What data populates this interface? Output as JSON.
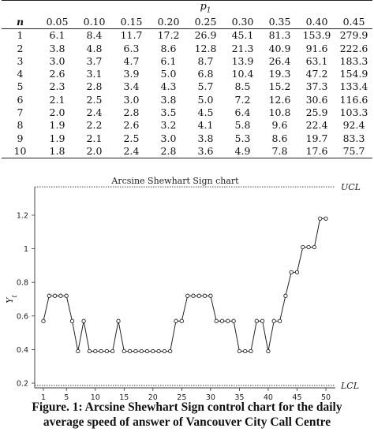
{
  "table": {
    "group_header": "p1",
    "n_header": "n",
    "columns": [
      "0.05",
      "0.10",
      "0.15",
      "0.20",
      "0.25",
      "0.30",
      "0.35",
      "0.40",
      "0.45"
    ],
    "rows": [
      {
        "n": "1",
        "values": [
          "6.1",
          "8.4",
          "11.7",
          "17.2",
          "26.9",
          "45.1",
          "81.3",
          "153.9",
          "279.9"
        ]
      },
      {
        "n": "2",
        "values": [
          "3.8",
          "4.8",
          "6.3",
          "8.6",
          "12.8",
          "21.3",
          "40.9",
          "91.6",
          "222.6"
        ]
      },
      {
        "n": "3",
        "values": [
          "3.0",
          "3.7",
          "4.7",
          "6.1",
          "8.7",
          "13.9",
          "26.4",
          "63.1",
          "183.3"
        ]
      },
      {
        "n": "4",
        "values": [
          "2.6",
          "3.1",
          "3.9",
          "5.0",
          "6.8",
          "10.4",
          "19.3",
          "47.2",
          "154.9"
        ]
      },
      {
        "n": "5",
        "values": [
          "2.3",
          "2.8",
          "3.4",
          "4.3",
          "5.7",
          "8.5",
          "15.2",
          "37.3",
          "133.4"
        ]
      },
      {
        "n": "6",
        "values": [
          "2.1",
          "2.5",
          "3.0",
          "3.8",
          "5.0",
          "7.2",
          "12.6",
          "30.6",
          "116.6"
        ]
      },
      {
        "n": "7",
        "values": [
          "2.0",
          "2.4",
          "2.8",
          "3.5",
          "4.5",
          "6.4",
          "10.8",
          "25.9",
          "103.3"
        ]
      },
      {
        "n": "8",
        "values": [
          "1.9",
          "2.2",
          "2.6",
          "3.2",
          "4.1",
          "5.8",
          "9.6",
          "22.4",
          "92.4"
        ]
      },
      {
        "n": "9",
        "values": [
          "1.9",
          "2.1",
          "2.5",
          "3.0",
          "3.8",
          "5.3",
          "8.6",
          "19.7",
          "83.3"
        ]
      },
      {
        "n": "10",
        "values": [
          "1.8",
          "2.0",
          "2.4",
          "2.8",
          "3.6",
          "4.9",
          "7.8",
          "17.6",
          "75.7"
        ]
      }
    ]
  },
  "chart_data": {
    "type": "line",
    "title": "Arcsine Shewhart Sign chart",
    "xlabel": "",
    "ylabel": "Y_t",
    "xlim": [
      1,
      50
    ],
    "ylim": [
      0.2,
      1.35
    ],
    "x_ticks": [
      "1",
      "5",
      "10",
      "15",
      "20",
      "25",
      "30",
      "35",
      "40",
      "45",
      "50"
    ],
    "y_ticks": [
      "0.2",
      "0.4",
      "0.6",
      "0.8",
      "1",
      "1.2"
    ],
    "control_limits": [
      {
        "label": "UCL",
        "value": 1.35
      },
      {
        "label": "LCL",
        "value": 0.21
      }
    ],
    "grid": false,
    "series": [
      {
        "x": [
          1,
          2,
          3,
          4,
          5,
          6,
          7,
          8,
          9,
          10,
          11,
          12,
          13,
          14,
          15,
          16,
          17,
          18,
          19,
          20,
          21,
          22,
          23,
          24,
          25,
          26,
          27,
          28,
          29,
          30,
          31,
          32,
          33,
          34,
          35,
          36,
          37,
          38,
          39,
          40,
          41,
          42,
          43,
          44,
          45,
          46,
          47,
          48,
          49,
          50
        ],
        "values": [
          0.57,
          0.72,
          0.72,
          0.72,
          0.72,
          0.57,
          0.39,
          0.57,
          0.39,
          0.39,
          0.39,
          0.39,
          0.39,
          0.57,
          0.39,
          0.39,
          0.39,
          0.39,
          0.39,
          0.39,
          0.39,
          0.39,
          0.39,
          0.57,
          0.57,
          0.72,
          0.72,
          0.72,
          0.72,
          0.72,
          0.57,
          0.57,
          0.57,
          0.57,
          0.39,
          0.39,
          0.39,
          0.57,
          0.57,
          0.39,
          0.57,
          0.57,
          0.72,
          0.86,
          0.86,
          1.01,
          1.01,
          1.01,
          1.18,
          1.18
        ]
      }
    ]
  },
  "caption": {
    "line1": "Figure. 1: Arcsine Shewhart Sign control chart for the daily",
    "line2": "average speed of answer of Vancouver City Call Centre"
  }
}
